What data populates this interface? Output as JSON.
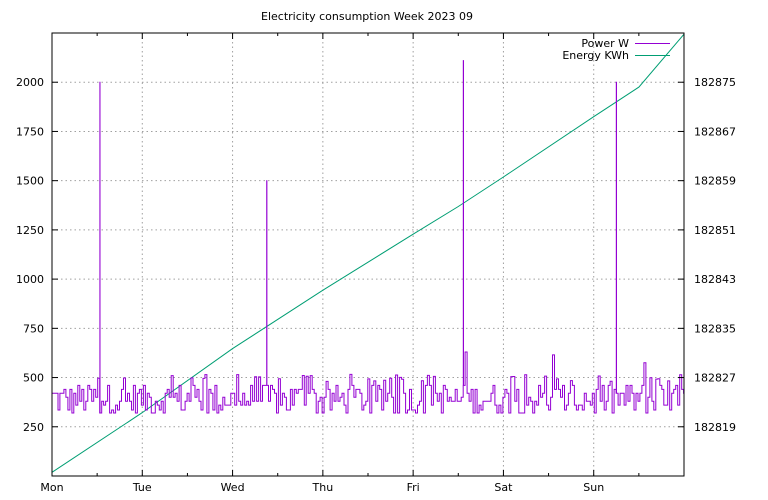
{
  "chart_data": {
    "type": "line",
    "title": "Electricity consumption Week 2023 09",
    "x_ticks": [
      "Mon",
      "Tue",
      "Wed",
      "Thu",
      "Fri",
      "Sat",
      "Sun"
    ],
    "x_range_days": [
      0,
      7
    ],
    "y_left": {
      "ticks": [
        250,
        500,
        750,
        1000,
        1250,
        1500,
        1750,
        2000
      ],
      "range": [
        0,
        2250
      ]
    },
    "y_right": {
      "ticks": [
        182819,
        182827,
        182835,
        182843,
        182851,
        182859,
        182867,
        182875
      ],
      "range": [
        182811,
        182883
      ]
    },
    "grid": true,
    "legend_position": "top-right",
    "series": [
      {
        "name": "Power W",
        "axis": "left",
        "color": "#9400d3",
        "baseline_range": [
          310,
          520
        ],
        "spikes": [
          {
            "day": 0.53,
            "value": 2000
          },
          {
            "day": 2.38,
            "value": 1500
          },
          {
            "day": 4.55,
            "value": 2110
          },
          {
            "day": 6.25,
            "value": 2000
          }
        ],
        "bumps": [
          {
            "day": 4.58,
            "value": 630
          },
          {
            "day": 5.55,
            "value": 615
          },
          {
            "day": 6.55,
            "value": 575
          }
        ]
      },
      {
        "name": "Energy KWh",
        "axis": "right",
        "color": "#009e73",
        "points": [
          [
            0,
            182811.6
          ],
          [
            1,
            182821.3
          ],
          [
            2,
            182831.7
          ],
          [
            3,
            182841.2
          ],
          [
            4,
            182850.3
          ],
          [
            4.5,
            182854.8
          ],
          [
            5,
            182859.6
          ],
          [
            6,
            182869.4
          ],
          [
            6.5,
            182874.2
          ],
          [
            7,
            182882.8
          ]
        ]
      }
    ]
  }
}
